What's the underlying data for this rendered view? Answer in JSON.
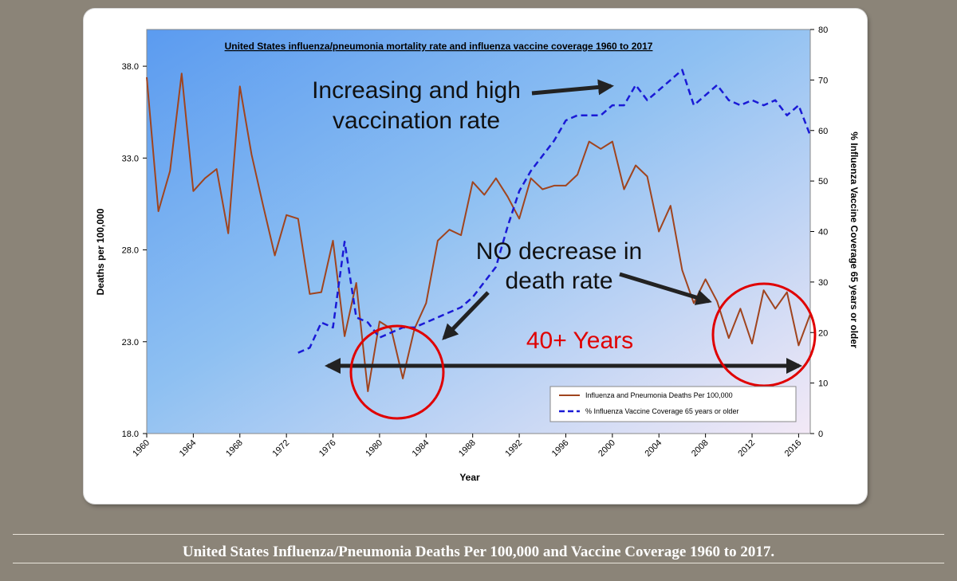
{
  "chart_data": {
    "type": "line",
    "title": "United States influenza/pneumonia mortality rate and influenza vaccine coverage 1960 to 2017",
    "xlabel": "Year",
    "ylabel": "Deaths per 100,000",
    "ylabel_right": "% Influenza Vaccine Coverage 65 years or older",
    "xlim": [
      1960,
      2017
    ],
    "ylim": [
      18,
      40
    ],
    "ylim_right": [
      0,
      80
    ],
    "x_ticks": [
      "1960",
      "1964",
      "1968",
      "1972",
      "1976",
      "1980",
      "1984",
      "1988",
      "1992",
      "1996",
      "2000",
      "2004",
      "2008",
      "2012",
      "2016"
    ],
    "y_ticks": [
      "18.0",
      "23.0",
      "28.0",
      "33.0",
      "38.0"
    ],
    "y_ticks_right": [
      "0",
      "10",
      "20",
      "30",
      "40",
      "50",
      "60",
      "70",
      "80"
    ],
    "grid": false,
    "legend_position": "bottom-right",
    "series": [
      {
        "name": "Influenza and Pneumonia Deaths Per 100,000",
        "axis": "left",
        "color": "#a0441e",
        "style": "solid",
        "x": [
          1960,
          1961,
          1962,
          1963,
          1964,
          1965,
          1966,
          1967,
          1968,
          1969,
          1970,
          1971,
          1972,
          1973,
          1974,
          1975,
          1976,
          1977,
          1978,
          1979,
          1980,
          1981,
          1982,
          1983,
          1984,
          1985,
          1986,
          1987,
          1988,
          1989,
          1990,
          1991,
          1992,
          1993,
          1994,
          1995,
          1996,
          1997,
          1998,
          1999,
          2000,
          2001,
          2002,
          2003,
          2004,
          2005,
          2006,
          2007,
          2008,
          2009,
          2010,
          2011,
          2012,
          2013,
          2014,
          2015,
          2016,
          2017
        ],
        "values": [
          37.4,
          30.1,
          32.3,
          37.6,
          31.2,
          31.9,
          32.4,
          28.9,
          36.9,
          33.2,
          30.4,
          27.7,
          29.9,
          29.7,
          25.6,
          25.7,
          28.5,
          23.3,
          26.2,
          20.3,
          24.1,
          23.7,
          21.0,
          23.7,
          25.1,
          28.5,
          29.1,
          28.8,
          31.7,
          31.0,
          31.9,
          30.9,
          29.7,
          31.9,
          31.3,
          31.5,
          31.5,
          32.1,
          33.9,
          33.5,
          33.9,
          31.3,
          32.6,
          32.0,
          29.0,
          30.4,
          26.9,
          25.1,
          26.4,
          25.2,
          23.2,
          24.8,
          22.9,
          25.8,
          24.8,
          25.7,
          22.8,
          24.5
        ]
      },
      {
        "name": "% Influenza Vaccine Coverage 65 years or older",
        "axis": "right",
        "color": "#1a1ad6",
        "style": "dashed",
        "x": [
          1973,
          1974,
          1975,
          1976,
          1977,
          1978,
          1979,
          1980,
          1981,
          1982,
          1983,
          1984,
          1985,
          1986,
          1987,
          1988,
          1989,
          1990,
          1991,
          1992,
          1993,
          1994,
          1995,
          1996,
          1997,
          1998,
          1999,
          2000,
          2001,
          2002,
          2003,
          2004,
          2005,
          2006,
          2007,
          2008,
          2009,
          2010,
          2011,
          2012,
          2013,
          2014,
          2015,
          2016,
          2017
        ],
        "values": [
          16,
          17,
          22,
          21,
          38,
          23,
          22,
          19,
          20,
          21,
          21,
          22,
          23,
          24,
          25,
          27,
          30,
          33,
          41,
          48,
          52,
          55,
          58,
          62,
          63,
          63,
          63,
          65,
          65,
          69,
          66,
          68,
          70,
          72,
          65,
          67,
          69,
          66,
          65,
          66,
          65,
          66,
          63,
          65,
          59
        ]
      }
    ],
    "annotations": [
      {
        "text_lines": [
          "Increasing and high",
          "vaccination rate"
        ],
        "color": "#111111"
      },
      {
        "text_lines": [
          "NO decrease in",
          "death rate"
        ],
        "color": "#111111"
      },
      {
        "text_lines": [
          "40+ Years"
        ],
        "color": "#e00000"
      }
    ]
  },
  "caption": "United States Influenza/Pneumonia Deaths Per 100,000 and Vaccine Coverage 1960 to 2017."
}
